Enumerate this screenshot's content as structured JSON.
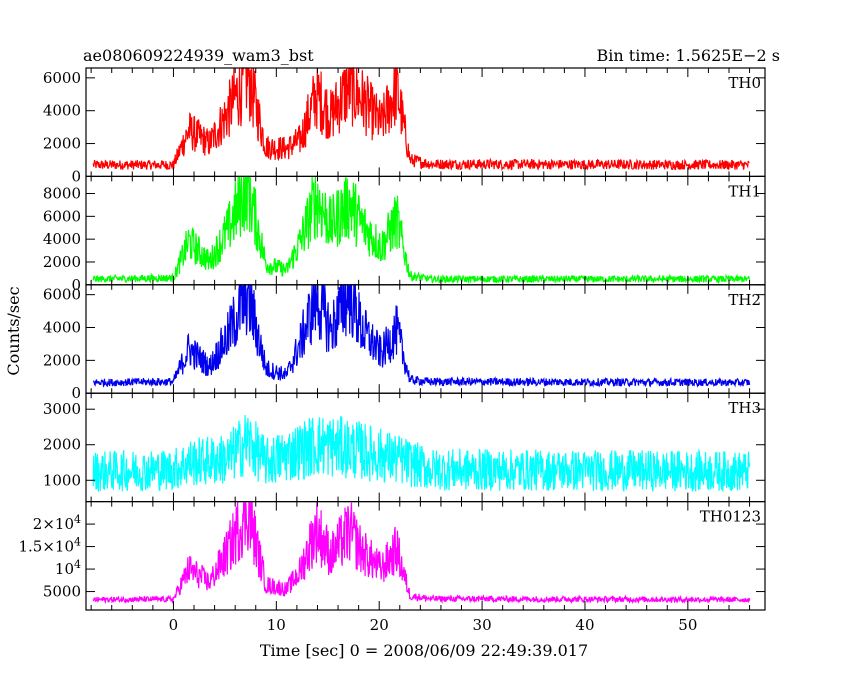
{
  "header": {
    "left": "ae080609224939_wam3_bst",
    "right": "Bin time: 1.5625E−2 s"
  },
  "axes": {
    "ylabel": "Counts/sec",
    "xlabel": "Time [sec] 0 = 2008/06/09 22:49:39.017"
  },
  "chart_data": {
    "type": "line",
    "x_range": [
      -8.5,
      57.5
    ],
    "x_ticks": [
      0,
      10,
      20,
      30,
      40,
      50
    ],
    "x_tick_labels": [
      "0",
      "10",
      "20",
      "30",
      "40",
      "50"
    ],
    "x_data_range": [
      -7.8,
      56.0
    ],
    "bin_time_s": 0.015625,
    "burst_peaks_sec": [
      1.5,
      5.3,
      7.2,
      12.3,
      13.9,
      15.3,
      17.1,
      18.3,
      20.2,
      21.7
    ],
    "panels": [
      {
        "name": "TH0",
        "color": "#ff0000",
        "ylim": [
          0,
          6600
        ],
        "y_ticks": [
          0,
          2000,
          4000,
          6000
        ],
        "y_tick_labels": [
          "0",
          "2000",
          "4000",
          "6000"
        ],
        "baseline": 600,
        "noise_band": 500,
        "envelope": [
          [
            -8,
            700
          ],
          [
            0,
            700
          ],
          [
            1.5,
            2800
          ],
          [
            3.5,
            2000
          ],
          [
            5.3,
            3900
          ],
          [
            7.2,
            6300
          ],
          [
            9,
            1800
          ],
          [
            11,
            1700
          ],
          [
            12.3,
            2200
          ],
          [
            13.9,
            5000
          ],
          [
            15.3,
            3700
          ],
          [
            17.1,
            5500
          ],
          [
            18.3,
            4700
          ],
          [
            20.2,
            3200
          ],
          [
            21.7,
            5400
          ],
          [
            23,
            1000
          ],
          [
            25,
            750
          ],
          [
            56,
            700
          ]
        ]
      },
      {
        "name": "TH1",
        "color": "#00ff00",
        "ylim": [
          0,
          9500
        ],
        "y_ticks": [
          0,
          2000,
          4000,
          6000,
          8000
        ],
        "y_tick_labels": [
          "0",
          "2000",
          "4000",
          "6000",
          "8000"
        ],
        "baseline": 500,
        "noise_band": 600,
        "envelope": [
          [
            -8,
            500
          ],
          [
            0,
            600
          ],
          [
            1.5,
            3800
          ],
          [
            3.5,
            2000
          ],
          [
            5.3,
            4800
          ],
          [
            7.2,
            8800
          ],
          [
            9,
            1800
          ],
          [
            11,
            1300
          ],
          [
            12.3,
            3700
          ],
          [
            13.9,
            7600
          ],
          [
            15.3,
            5200
          ],
          [
            17.1,
            7200
          ],
          [
            18.3,
            5300
          ],
          [
            20.2,
            3300
          ],
          [
            21.7,
            5700
          ],
          [
            23,
            800
          ],
          [
            25,
            500
          ],
          [
            56,
            500
          ]
        ]
      },
      {
        "name": "TH2",
        "color": "#0000ee",
        "ylim": [
          0,
          6600
        ],
        "y_ticks": [
          0,
          2000,
          4000,
          6000
        ],
        "y_tick_labels": [
          "0",
          "2000",
          "4000",
          "6000"
        ],
        "baseline": 650,
        "noise_band": 450,
        "envelope": [
          [
            -8,
            650
          ],
          [
            0,
            700
          ],
          [
            1.5,
            2700
          ],
          [
            3.5,
            1600
          ],
          [
            5.3,
            3500
          ],
          [
            7.2,
            6100
          ],
          [
            9,
            1500
          ],
          [
            11,
            1100
          ],
          [
            12.3,
            3000
          ],
          [
            13.9,
            5900
          ],
          [
            15.3,
            3800
          ],
          [
            17.1,
            6200
          ],
          [
            18.3,
            3900
          ],
          [
            20.2,
            2400
          ],
          [
            21.7,
            3800
          ],
          [
            23,
            800
          ],
          [
            25,
            700
          ],
          [
            56,
            650
          ]
        ]
      },
      {
        "name": "TH3",
        "color": "#00ffff",
        "ylim": [
          400,
          3450
        ],
        "y_ticks": [
          1000,
          2000,
          3000
        ],
        "y_tick_labels": [
          "1000",
          "2000",
          "3000"
        ],
        "baseline": 1250,
        "noise_band": 1150,
        "envelope": [
          [
            -8,
            1250
          ],
          [
            0,
            1300
          ],
          [
            1.5,
            1500
          ],
          [
            5.3,
            1600
          ],
          [
            7.2,
            2100
          ],
          [
            9,
            1500
          ],
          [
            13.9,
            2000
          ],
          [
            17.1,
            1900
          ],
          [
            21.7,
            1600
          ],
          [
            25,
            1300
          ],
          [
            56,
            1250
          ]
        ]
      },
      {
        "name": "TH0123",
        "color": "#ff00ff",
        "ylim": [
          900,
          25000
        ],
        "y_ticks": [
          5000,
          10000,
          15000,
          20000
        ],
        "y_tick_labels": [
          "5000",
          "10^4",
          "1.5×10^4",
          "2×10^4"
        ],
        "baseline": 3200,
        "noise_band": 1200,
        "envelope": [
          [
            -8,
            3200
          ],
          [
            0,
            3300
          ],
          [
            1.5,
            10000
          ],
          [
            3.5,
            7000
          ],
          [
            5.3,
            14000
          ],
          [
            7.2,
            23500
          ],
          [
            9,
            6500
          ],
          [
            11,
            5500
          ],
          [
            12.3,
            9500
          ],
          [
            13.9,
            19000
          ],
          [
            15.3,
            13000
          ],
          [
            17.1,
            18500
          ],
          [
            18.3,
            14000
          ],
          [
            20.2,
            10000
          ],
          [
            21.7,
            14500
          ],
          [
            23,
            4000
          ],
          [
            25,
            3400
          ],
          [
            56,
            3200
          ]
        ]
      }
    ]
  }
}
